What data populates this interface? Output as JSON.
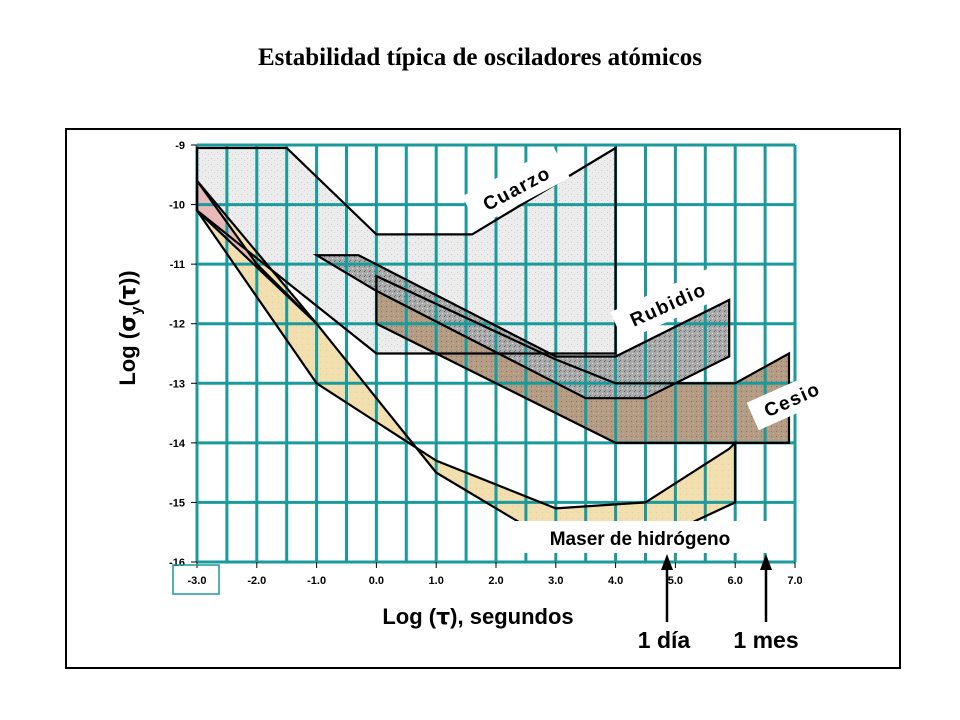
{
  "title": "Estabilidad típica de osciladores atómicos",
  "chart_data": {
    "type": "area",
    "title": "Estabilidad típica de osciladores atómicos",
    "xlabel_prefix": "Log (",
    "xlabel_sym": "τ",
    "xlabel_suffix": "), segundos",
    "ylabel_prefix": "Log (",
    "ylabel_sigma": "σ",
    "ylabel_sub": "y",
    "ylabel_mid": "(",
    "ylabel_tau": "τ",
    "ylabel_suffix": "))",
    "xlim": [
      -3.0,
      7.0
    ],
    "ylim": [
      -16,
      -9
    ],
    "x_ticks": [
      "-3.0",
      "-2.0",
      "-1.0",
      "0.0",
      "1.0",
      "2.0",
      "3.0",
      "4.0",
      "5.0",
      "6.0",
      "7.0"
    ],
    "y_ticks": [
      "-9",
      "-10",
      "-11",
      "-12",
      "-13",
      "-14",
      "-15",
      "-16"
    ],
    "grid": true,
    "grid_color": "#1a9a9a",
    "series": [
      {
        "name": "Cuarzo",
        "color": "#ececec",
        "polygon": [
          [
            -3.0,
            -9.05
          ],
          [
            -1.5,
            -9.05
          ],
          [
            0.0,
            -10.5
          ],
          [
            1.6,
            -10.5
          ],
          [
            4.0,
            -9.05
          ],
          [
            4.0,
            -9.05
          ],
          [
            4.0,
            -12.5
          ],
          [
            0.0,
            -12.5
          ],
          [
            -3.0,
            -10.1
          ]
        ]
      },
      {
        "name": "Rubidio",
        "color": "#a8a8a8",
        "polygon": [
          [
            -1.0,
            -10.85
          ],
          [
            -0.3,
            -10.85
          ],
          [
            3.0,
            -12.55
          ],
          [
            4.0,
            -12.55
          ],
          [
            5.9,
            -11.6
          ],
          [
            5.9,
            -12.55
          ],
          [
            4.5,
            -13.25
          ],
          [
            3.5,
            -13.25
          ],
          [
            0.0,
            -11.45
          ],
          [
            -1.0,
            -10.85
          ]
        ]
      },
      {
        "name": "Cesio",
        "color": "#b39a82",
        "polygon": [
          [
            0.0,
            -11.2
          ],
          [
            0.0,
            -12.0
          ],
          [
            4.0,
            -14.0
          ],
          [
            6.9,
            -14.0
          ],
          [
            6.9,
            -12.5
          ],
          [
            6.0,
            -13.0
          ],
          [
            4.0,
            -13.0
          ],
          [
            3.0,
            -12.6
          ],
          [
            0.0,
            -11.2
          ]
        ]
      },
      {
        "name": "Maser de hidrógeno",
        "color": "#f2dfb0",
        "polygon": [
          [
            -3.0,
            -9.6
          ],
          [
            -1.0,
            -12.0
          ],
          [
            1.0,
            -14.5
          ],
          [
            3.0,
            -15.7
          ],
          [
            4.5,
            -15.7
          ],
          [
            6.0,
            -15.0
          ],
          [
            6.0,
            -14.0
          ],
          [
            5.9,
            -14.1
          ],
          [
            4.5,
            -15.0
          ],
          [
            3.0,
            -15.1
          ],
          [
            1.0,
            -14.3
          ],
          [
            -1.0,
            -13.0
          ],
          [
            -3.0,
            -10.1
          ]
        ]
      },
      {
        "name": "hydrogen-pink-tip",
        "color": "#e9b8b8",
        "polygon": [
          [
            -3.0,
            -9.6
          ],
          [
            -2.0,
            -11.0
          ],
          [
            -1.0,
            -12.0
          ],
          [
            -3.0,
            -10.1
          ]
        ]
      }
    ],
    "annotations": [
      {
        "text": "1 día",
        "x": 4.94
      },
      {
        "text": "1 mes",
        "x": 6.41
      }
    ]
  },
  "labels": {
    "cuarzo": "Cuarzo",
    "rubidio": "Rubidio",
    "cesio": "Cesio",
    "maser": "Maser de hidrógeno",
    "dia": "1 día",
    "mes": "1 mes"
  }
}
